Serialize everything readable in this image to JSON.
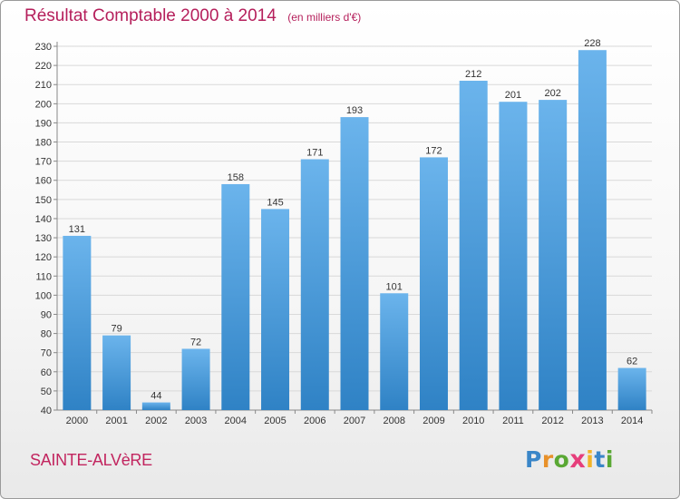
{
  "title": "Résultat Comptable 2000 à 2014",
  "subtitle": "(en milliers d'€)",
  "commune": "SAINTE-ALVèRE",
  "logo": {
    "letters": [
      {
        "char": "P",
        "color": "#3a86c8"
      },
      {
        "char": "r",
        "color": "#e8912a"
      },
      {
        "char": "o",
        "color": "#5aa834"
      },
      {
        "char": "x",
        "color": "#e63e7b"
      },
      {
        "char": "i",
        "color": "#f2b428"
      },
      {
        "char": "t",
        "color": "#3a86c8"
      },
      {
        "char": "i",
        "color": "#5aa834"
      }
    ]
  },
  "colors": {
    "bar_top": "#6bb4ec",
    "bar_bottom": "#2f82c5",
    "grid": "#d9d9d9",
    "axis": "#888888",
    "text": "#333333"
  },
  "chart_data": {
    "type": "bar",
    "categories": [
      "2000",
      "2001",
      "2002",
      "2003",
      "2004",
      "2005",
      "2006",
      "2007",
      "2008",
      "2009",
      "2010",
      "2011",
      "2012",
      "2013",
      "2014"
    ],
    "values": [
      131,
      79,
      44,
      72,
      158,
      145,
      171,
      193,
      101,
      172,
      212,
      201,
      202,
      228,
      62
    ],
    "ylim": [
      40,
      230
    ],
    "yticks": [
      40,
      50,
      60,
      70,
      80,
      90,
      100,
      110,
      120,
      130,
      140,
      150,
      160,
      170,
      180,
      190,
      200,
      210,
      220,
      230
    ],
    "grid": true,
    "data_labels": true
  }
}
